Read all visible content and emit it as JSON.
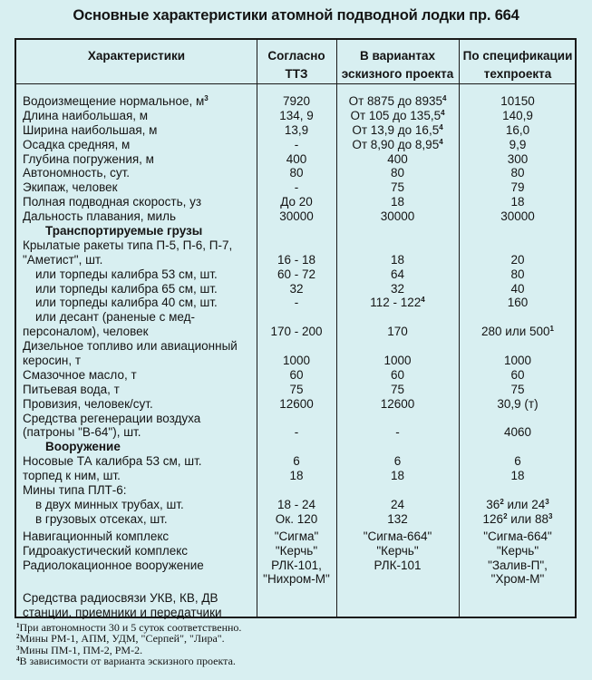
{
  "title": "Основные характеристики атомной подводной лодки пр. 664",
  "headers": [
    "Характеристики",
    "Согласно\nТТЗ",
    "В вариантах\nэскизного проекта",
    "По спецификации\nтехпроекта"
  ],
  "rows": [
    {
      "label": [
        {
          "text": "Водоизмещение нормальное, м"
        },
        {
          "sup": "3"
        }
      ],
      "values": [
        "7920",
        [
          {
            "text": "От 8875 до 8935"
          },
          {
            "sup": "4"
          }
        ],
        "10150"
      ]
    },
    {
      "label": "Длина наибольшая, м",
      "values": [
        "134, 9",
        [
          {
            "text": "От 105 до 135,5"
          },
          {
            "sup": "4"
          }
        ],
        "140,9"
      ]
    },
    {
      "label": "Ширина наибольшая, м",
      "values": [
        "13,9",
        [
          {
            "text": "От 13,9 до 16,5"
          },
          {
            "sup": "4"
          }
        ],
        "16,0"
      ]
    },
    {
      "label": "Осадка средняя, м",
      "values": [
        "-",
        [
          {
            "text": "От 8,90 до 8,95"
          },
          {
            "sup": "4"
          }
        ],
        "9,9"
      ]
    },
    {
      "label": "Глубина погружения, м",
      "values": [
        "400",
        "400",
        "300"
      ]
    },
    {
      "label": "Автономность, сут.",
      "values": [
        "80",
        "80",
        "80"
      ]
    },
    {
      "label": "Экипаж, человек",
      "values": [
        "-",
        "75",
        "79"
      ]
    },
    {
      "label": "Полная подводная скорость, уз",
      "values": [
        "До 20",
        "18",
        "18"
      ]
    },
    {
      "label": "Дальность плавания, миль",
      "values": [
        "30000",
        "30000",
        "30000"
      ]
    },
    {
      "label": "Транспортируемые грузы",
      "kind": "section",
      "values": [
        "",
        "",
        ""
      ]
    },
    {
      "label": "Крылатые ракеты типа П-5, П-6, П-7,",
      "values": [
        "",
        "",
        ""
      ]
    },
    {
      "label": "\"Аметист\", шт.",
      "values": [
        "16 - 18",
        "18",
        "20"
      ]
    },
    {
      "label": "или торпеды калибра 53 см, шт.",
      "kind": "sub",
      "values": [
        "60 - 72",
        "64",
        "80"
      ]
    },
    {
      "label": "или торпеды калибра 65 см, шт.",
      "kind": "sub",
      "values": [
        "32",
        "32",
        "40"
      ]
    },
    {
      "label": "или торпеды калибра 40 см, шт.",
      "kind": "sub",
      "values": [
        "-",
        [
          {
            "text": "112 - 122"
          },
          {
            "sup": "4"
          }
        ],
        "160"
      ]
    },
    {
      "label": "или десант (раненые с мед-",
      "kind": "sub",
      "values": [
        "",
        "",
        ""
      ]
    },
    {
      "label": "персоналом), человек",
      "values": [
        "170 - 200",
        "170",
        [
          {
            "text": "280 или 500"
          },
          {
            "sup": "1"
          }
        ]
      ]
    },
    {
      "label": "Дизельное топливо или авиационный",
      "values": [
        "",
        "",
        ""
      ]
    },
    {
      "label": "керосин, т",
      "values": [
        "1000",
        "1000",
        "1000"
      ]
    },
    {
      "label": "Смазочное масло, т",
      "values": [
        "60",
        "60",
        "60"
      ]
    },
    {
      "label": "Питьевая вода, т",
      "values": [
        "75",
        "75",
        "75"
      ]
    },
    {
      "label": "Провизия, человек/сут.",
      "values": [
        "12600",
        "12600",
        "30,9 (т)"
      ]
    },
    {
      "label": "Средства регенерации воздуха",
      "values": [
        "",
        "",
        ""
      ]
    },
    {
      "label": "(патроны \"В-64\"), шт.",
      "values": [
        "-",
        "-",
        "4060"
      ]
    },
    {
      "label": "Вооружение",
      "kind": "section",
      "values": [
        "",
        "",
        ""
      ]
    },
    {
      "label": "Носовые ТА калибра 53 см, шт.",
      "values": [
        "6",
        "6",
        "6"
      ]
    },
    {
      "label": "торпед к ним, шт.",
      "values": [
        "18",
        "18",
        "18"
      ]
    },
    {
      "label": "Мины типа ПЛТ-6:",
      "values": [
        "",
        "",
        ""
      ]
    },
    {
      "label": "в двух минных трубах, шт.",
      "kind": "sub",
      "values": [
        "18 - 24",
        "24",
        [
          {
            "text": "36"
          },
          {
            "sup": "2"
          },
          {
            "text": " или 24"
          },
          {
            "sup": "3"
          }
        ]
      ]
    },
    {
      "label": "в грузовых отсеках, шт.",
      "kind": "sub",
      "values": [
        "Ок. 120",
        "132",
        [
          {
            "text": "126"
          },
          {
            "sup": "2"
          },
          {
            "text": " или 88"
          },
          {
            "sup": "3"
          }
        ]
      ]
    },
    {
      "label": "Навигационный комплекс",
      "kind": "gap",
      "values": [
        "\"Сигма\"",
        "\"Сигма-664\"",
        "\"Сигма-664\""
      ]
    },
    {
      "label": "Гидроакустический комплекс",
      "values": [
        "\"Керчь\"",
        "\"Керчь\"",
        "\"Керчь\""
      ]
    },
    {
      "label": "Радиолокационное вооружение",
      "values": [
        "РЛК-101,",
        "РЛК-101",
        "\"Залив-П\","
      ]
    },
    {
      "label": "",
      "values": [
        "\"Нихром-М\"",
        "",
        "\"Хром-М\""
      ]
    },
    {
      "label": "",
      "kind": "spacer",
      "values": [
        "",
        "",
        ""
      ]
    },
    {
      "label": "Средства радиосвязи УКВ, КВ, ДВ",
      "values": [
        "",
        "",
        ""
      ]
    },
    {
      "label": "станции, приемники и передатчики",
      "values": [
        "",
        "",
        ""
      ]
    }
  ],
  "footnotes": [
    {
      "mark": "1",
      "text": "При автономности 30 и 5 суток соответственно."
    },
    {
      "mark": "2",
      "text": "Мины РМ-1, АПМ, УДМ, \"Серпей\", \"Лира\"."
    },
    {
      "mark": "3",
      "text": "Мины ПМ-1, ПМ-2, РМ-2."
    },
    {
      "mark": "4",
      "text": "В зависимости от варианта эскизного проекта."
    }
  ],
  "colors": {
    "background": "#d8eff1",
    "text": "#141414",
    "rules": "#1a1a1a"
  }
}
